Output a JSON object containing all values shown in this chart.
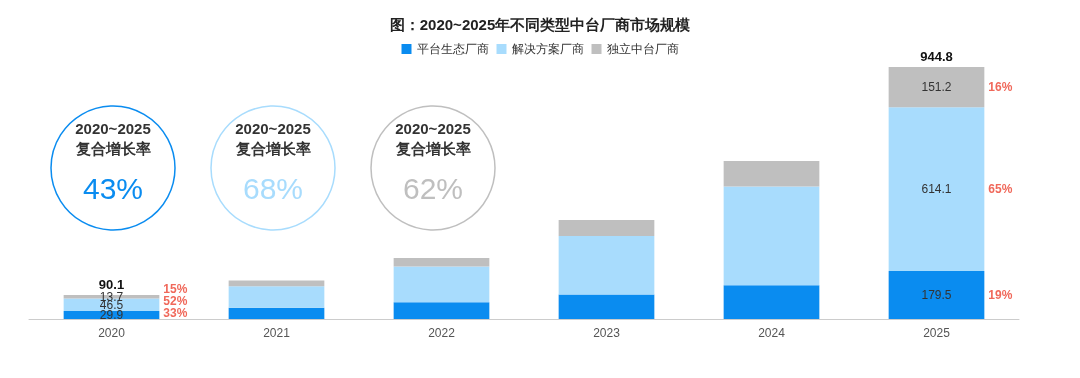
{
  "chart_data": {
    "type": "bar",
    "title": "图：2020~2025年不同类型中台厂商市场规模",
    "categories": [
      "2020",
      "2021",
      "2022",
      "2023",
      "2024",
      "2025"
    ],
    "stacked": true,
    "legend": "top",
    "series": [
      {
        "name": "平台生态厂商",
        "color": "#0a8cf0",
        "values": [
          29.9,
          42,
          63,
          92,
          127,
          179.5
        ],
        "value_labels": [
          "29.9",
          null,
          null,
          null,
          null,
          "179.5"
        ]
      },
      {
        "name": "解决方案厂商",
        "color": "#a8dcfd",
        "values": [
          46.5,
          81,
          134,
          219,
          370,
          614.1
        ],
        "value_labels": [
          "46.5",
          null,
          null,
          null,
          null,
          "614.1"
        ]
      },
      {
        "name": "独立中台厂商",
        "color": "#bfbfbf",
        "values": [
          13.7,
          21,
          32,
          60,
          95,
          151.2
        ],
        "value_labels": [
          "13.7",
          null,
          null,
          null,
          null,
          "151.2"
        ]
      }
    ],
    "totals": [
      "90.1",
      null,
      null,
      null,
      null,
      "944.8"
    ],
    "annotations": [
      "2020~2025\n复合增长率\n43%",
      "2020~2025\n复合增长率\n68%",
      "2020~2025\n复合增长率\n62%",
      "15%",
      "52%",
      "33%",
      "16%",
      "65%",
      "19%"
    ]
  }
}
